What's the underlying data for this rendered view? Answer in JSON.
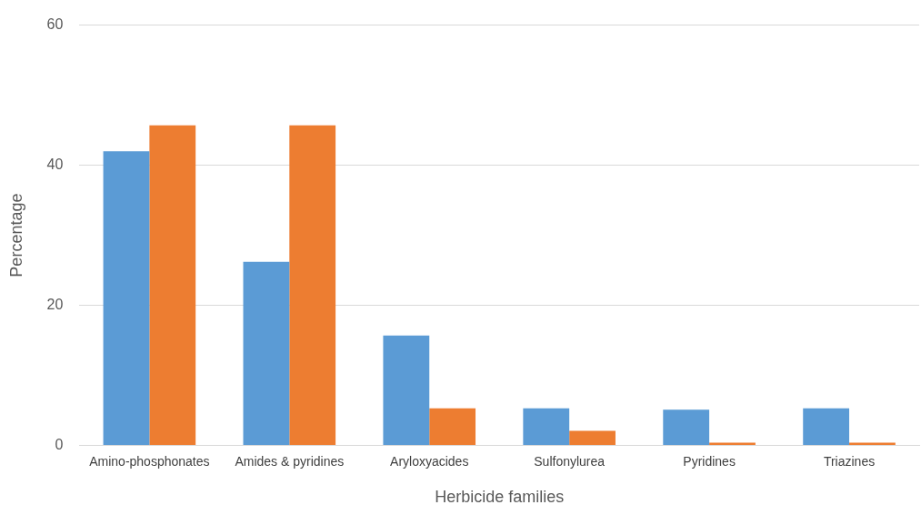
{
  "chart_data": {
    "type": "bar",
    "xlabel": "Herbicide families",
    "ylabel": "Percentage",
    "categories": [
      "Amino-phosphonates",
      "Amides & pyridines",
      "Aryloxyacides",
      "Sulfonylurea",
      "Pyridines",
      "Triazines"
    ],
    "series": [
      {
        "color": "#5b9bd5",
        "values": [
          42.0,
          26.2,
          15.7,
          5.3,
          5.1,
          5.3
        ]
      },
      {
        "color": "#ed7d31",
        "values": [
          45.7,
          45.7,
          5.3,
          2.1,
          0.4,
          0.4
        ]
      }
    ],
    "ylim": [
      0,
      60
    ],
    "yticks": [
      0,
      20,
      40,
      60
    ],
    "grid": "y",
    "legend": false
  }
}
